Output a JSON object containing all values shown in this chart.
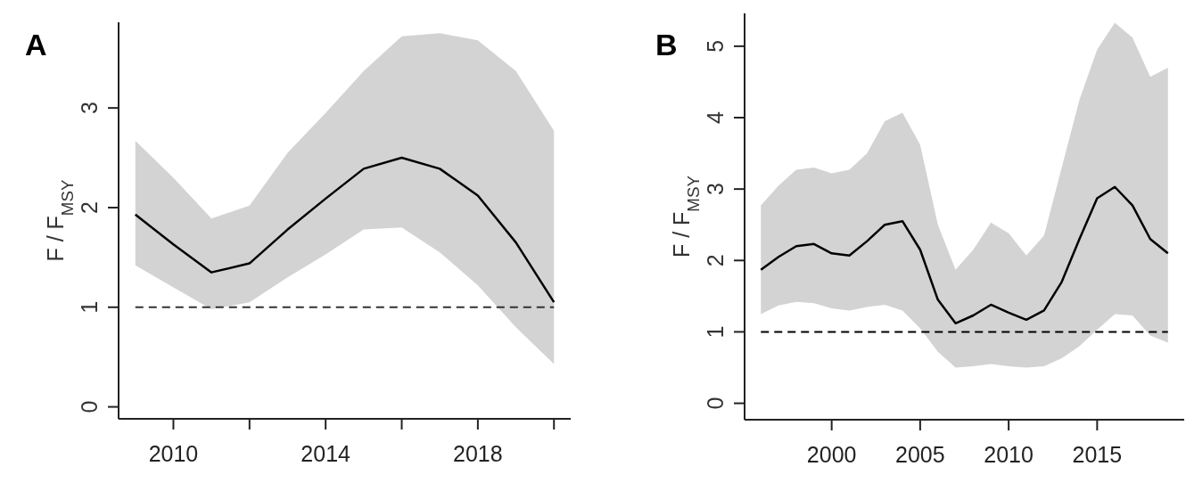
{
  "chart_data": [
    {
      "type": "line",
      "title": "A",
      "ylabel": "F / F$_{MSY}$",
      "x": [
        2009,
        2010,
        2011,
        2012,
        2013,
        2014,
        2015,
        2016,
        2017,
        2018,
        2019,
        2020
      ],
      "series": [
        {
          "color": "#000000",
          "values": [
            1.93,
            1.63,
            1.35,
            1.44,
            1.78,
            2.09,
            2.39,
            2.5,
            2.39,
            2.12,
            1.65,
            1.05
          ],
          "lower": [
            1.42,
            1.2,
            0.98,
            1.05,
            1.3,
            1.53,
            1.78,
            1.8,
            1.55,
            1.22,
            0.8,
            0.43
          ],
          "upper": [
            2.67,
            2.3,
            1.89,
            2.02,
            2.55,
            2.95,
            3.37,
            3.72,
            3.75,
            3.68,
            3.37,
            2.77
          ]
        }
      ],
      "xlim": [
        2008.56,
        2020.44
      ],
      "xticks": [
        2010,
        {
          "value": 2012,
          "label": null
        },
        2014,
        {
          "value": 2016,
          "label": null
        },
        2018,
        {
          "value": 2020,
          "label": null
        }
      ],
      "ylim": [
        -0.12,
        3.86
      ],
      "yticks": [
        0,
        1,
        2,
        3
      ],
      "ref_lines": [
        {
          "axis": "y",
          "value": 1,
          "color": "#333333",
          "line_style": "dashed"
        }
      ]
    },
    {
      "type": "line",
      "title": "B",
      "ylabel": "F / F$_{MSY}$",
      "x": [
        1996,
        1997,
        1998,
        1999,
        2000,
        2001,
        2002,
        2003,
        2004,
        2005,
        2006,
        2007,
        2008,
        2009,
        2010,
        2011,
        2012,
        2013,
        2014,
        2015,
        2016,
        2017,
        2018,
        2019
      ],
      "series": [
        {
          "color": "#000000",
          "values": [
            1.87,
            2.05,
            2.2,
            2.23,
            2.1,
            2.07,
            2.27,
            2.5,
            2.55,
            2.15,
            1.45,
            1.12,
            1.23,
            1.38,
            1.27,
            1.17,
            1.3,
            1.7,
            2.3,
            2.87,
            3.03,
            2.77,
            2.3,
            2.1
          ],
          "lower": [
            1.25,
            1.37,
            1.42,
            1.4,
            1.33,
            1.3,
            1.35,
            1.38,
            1.3,
            1.05,
            0.72,
            0.5,
            0.52,
            0.55,
            0.52,
            0.5,
            0.52,
            0.63,
            0.8,
            1.03,
            1.25,
            1.23,
            0.95,
            0.85
          ],
          "upper": [
            2.77,
            3.05,
            3.27,
            3.3,
            3.22,
            3.27,
            3.5,
            3.95,
            4.07,
            3.62,
            2.5,
            1.87,
            2.15,
            2.53,
            2.38,
            2.07,
            2.35,
            3.3,
            4.25,
            4.95,
            5.33,
            5.12,
            4.57,
            4.7
          ]
        }
      ],
      "xlim": [
        1995.08,
        2019.92
      ],
      "xticks": [
        2000,
        2005,
        2010,
        2015
      ],
      "ylim": [
        -0.23,
        5.46
      ],
      "yticks": [
        0,
        1,
        2,
        3,
        4,
        5
      ],
      "ref_lines": [
        {
          "axis": "y",
          "value": 1,
          "color": "#000000",
          "line_style": "dashed"
        }
      ]
    }
  ]
}
